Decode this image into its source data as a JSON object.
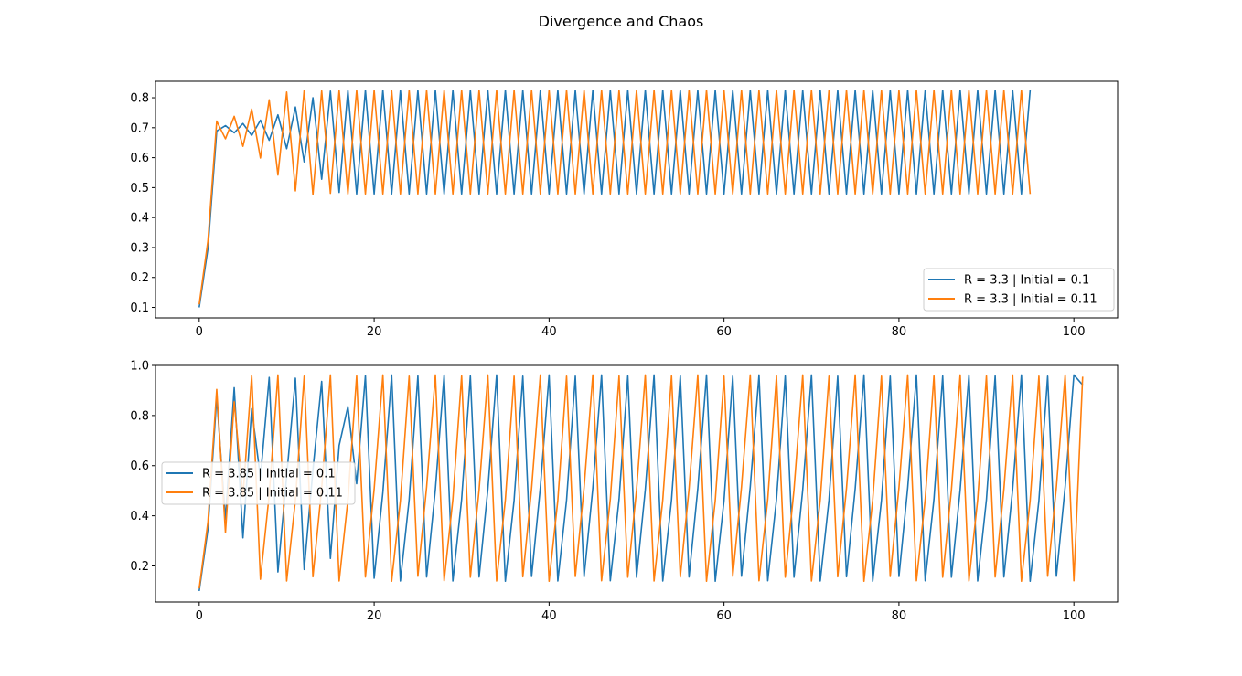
{
  "figure": {
    "title": "Divergence and Chaos"
  },
  "colors": {
    "series1": "#1f77b4",
    "series2": "#ff7f0e",
    "axes": "#000000",
    "legend_border": "#cccccc"
  },
  "chart_data": [
    {
      "type": "line",
      "xlim": [
        -5,
        105
      ],
      "ylim": [
        0.065,
        0.855
      ],
      "xticks": [
        0,
        20,
        40,
        60,
        80,
        100
      ],
      "yticks": [
        0.1,
        0.2,
        0.3,
        0.4,
        0.5,
        0.6,
        0.7,
        0.8
      ],
      "ytick_labels": [
        "0.1",
        "0.2",
        "0.3",
        "0.4",
        "0.5",
        "0.6",
        "0.7",
        "0.8"
      ],
      "legend_position": "lower right",
      "grid": false,
      "series": [
        {
          "name": "R = 3.3 | Initial = 0.1",
          "values": [
            0.1,
            0.297,
            0.689,
            0.707,
            0.683,
            0.714,
            0.674,
            0.725,
            0.658,
            0.743,
            0.63,
            0.769,
            0.586,
            0.8,
            0.528,
            0.822,
            0.484,
            0.825,
            0.479,
            0.825,
            0.479,
            0.825,
            0.479,
            0.825,
            0.479,
            0.825,
            0.479,
            0.825,
            0.479,
            0.825,
            0.479,
            0.825,
            0.479,
            0.825,
            0.479,
            0.825,
            0.479,
            0.825,
            0.479,
            0.825,
            0.479,
            0.825,
            0.479,
            0.825,
            0.479,
            0.825,
            0.479,
            0.825,
            0.479,
            0.825,
            0.479,
            0.825,
            0.479,
            0.825,
            0.479,
            0.825,
            0.479,
            0.825,
            0.479,
            0.825,
            0.479,
            0.825,
            0.479,
            0.825,
            0.479,
            0.825,
            0.479,
            0.825,
            0.479,
            0.825,
            0.479,
            0.825,
            0.479,
            0.825,
            0.479,
            0.825,
            0.479,
            0.825,
            0.479,
            0.825,
            0.479,
            0.825,
            0.479,
            0.825,
            0.479,
            0.825,
            0.479,
            0.825,
            0.479,
            0.825,
            0.479,
            0.825,
            0.479,
            0.825,
            0.479,
            0.825
          ]
        },
        {
          "name": "R = 3.3 | Initial = 0.11",
          "values": [
            0.11,
            0.323,
            0.722,
            0.663,
            0.738,
            0.638,
            0.762,
            0.599,
            0.793,
            0.542,
            0.819,
            0.489,
            0.825,
            0.477,
            0.823,
            0.481,
            0.824,
            0.479,
            0.825,
            0.479,
            0.825,
            0.479,
            0.825,
            0.479,
            0.825,
            0.479,
            0.825,
            0.479,
            0.825,
            0.479,
            0.825,
            0.479,
            0.825,
            0.479,
            0.825,
            0.479,
            0.825,
            0.479,
            0.825,
            0.479,
            0.825,
            0.479,
            0.825,
            0.479,
            0.825,
            0.479,
            0.825,
            0.479,
            0.825,
            0.479,
            0.825,
            0.479,
            0.825,
            0.479,
            0.825,
            0.479,
            0.825,
            0.479,
            0.825,
            0.479,
            0.825,
            0.479,
            0.825,
            0.479,
            0.825,
            0.479,
            0.825,
            0.479,
            0.825,
            0.479,
            0.825,
            0.479,
            0.825,
            0.479,
            0.825,
            0.479,
            0.825,
            0.479,
            0.825,
            0.479,
            0.825,
            0.479,
            0.825,
            0.479,
            0.825,
            0.479,
            0.825,
            0.479,
            0.825,
            0.479,
            0.825,
            0.479,
            0.825,
            0.479,
            0.825,
            0.479
          ]
        }
      ]
    },
    {
      "type": "line",
      "xlim": [
        -5,
        105
      ],
      "ylim": [
        0.056,
        1.0
      ],
      "xticks": [
        0,
        20,
        40,
        60,
        80,
        100
      ],
      "yticks": [
        0.2,
        0.4,
        0.6,
        0.8,
        1.0
      ],
      "ytick_labels": [
        "0.2",
        "0.4",
        "0.6",
        "0.8",
        "1.0"
      ],
      "legend_position": "center left",
      "grid": false,
      "series": [
        {
          "name": "R = 3.85 | Initial = 0.1",
          "values": [
            0.1,
            0.347,
            0.872,
            0.385,
            0.911,
            0.312,
            0.827,
            0.552,
            0.952,
            0.176,
            0.558,
            0.949,
            0.186,
            0.583,
            0.936,
            0.23,
            0.681,
            0.836,
            0.528,
            0.959,
            0.151,
            0.494,
            0.962,
            0.14,
            0.464,
            0.958,
            0.156,
            0.506,
            0.962,
            0.14,
            0.465,
            0.958,
            0.156,
            0.506,
            0.962,
            0.139,
            0.462,
            0.957,
            0.158,
            0.513,
            0.962,
            0.14,
            0.463,
            0.957,
            0.157,
            0.51,
            0.962,
            0.141,
            0.466,
            0.958,
            0.155,
            0.504,
            0.962,
            0.14,
            0.464,
            0.958,
            0.156,
            0.507,
            0.962,
            0.139,
            0.461,
            0.957,
            0.159,
            0.515,
            0.962,
            0.141,
            0.466,
            0.958,
            0.155,
            0.504,
            0.962,
            0.14,
            0.463,
            0.957,
            0.157,
            0.509,
            0.962,
            0.139,
            0.462,
            0.957,
            0.158,
            0.512,
            0.962,
            0.141,
            0.466,
            0.958,
            0.155,
            0.504,
            0.962,
            0.14,
            0.464,
            0.958,
            0.156,
            0.507,
            0.962,
            0.139,
            0.461,
            0.957,
            0.159,
            0.515,
            0.962,
            0.922
          ]
        },
        {
          "name": "R = 3.85 | Initial = 0.11",
          "values": [
            0.11,
            0.377,
            0.904,
            0.333,
            0.855,
            0.477,
            0.96,
            0.147,
            0.484,
            0.962,
            0.14,
            0.463,
            0.957,
            0.157,
            0.51,
            0.962,
            0.14,
            0.464,
            0.958,
            0.156,
            0.507,
            0.962,
            0.139,
            0.461,
            0.957,
            0.159,
            0.515,
            0.962,
            0.141,
            0.466,
            0.958,
            0.155,
            0.504,
            0.962,
            0.14,
            0.463,
            0.957,
            0.157,
            0.509,
            0.962,
            0.139,
            0.462,
            0.957,
            0.158,
            0.512,
            0.962,
            0.141,
            0.466,
            0.958,
            0.155,
            0.504,
            0.962,
            0.14,
            0.464,
            0.958,
            0.156,
            0.507,
            0.962,
            0.139,
            0.461,
            0.957,
            0.159,
            0.515,
            0.962,
            0.141,
            0.466,
            0.958,
            0.155,
            0.504,
            0.962,
            0.14,
            0.463,
            0.957,
            0.157,
            0.509,
            0.962,
            0.139,
            0.462,
            0.957,
            0.158,
            0.512,
            0.962,
            0.141,
            0.466,
            0.958,
            0.155,
            0.504,
            0.962,
            0.14,
            0.464,
            0.958,
            0.156,
            0.507,
            0.962,
            0.139,
            0.461,
            0.957,
            0.159,
            0.515,
            0.962,
            0.141,
            0.955
          ]
        }
      ]
    }
  ]
}
